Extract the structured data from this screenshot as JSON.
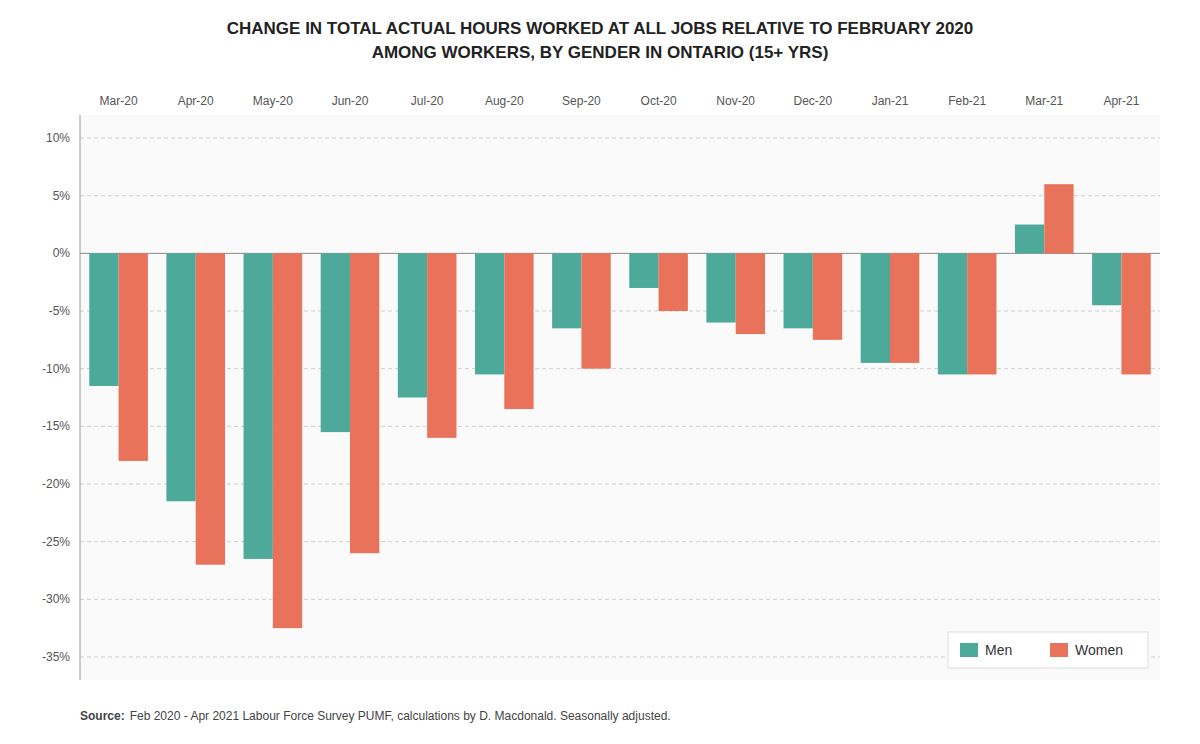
{
  "chart_data": {
    "type": "bar",
    "title": "CHANGE IN TOTAL ACTUAL HOURS WORKED AT ALL JOBS RELATIVE TO FEBRUARY 2020",
    "subtitle": "AMONG WORKERS, BY GENDER IN ONTARIO (15+ YRS)",
    "categories": [
      "Mar-20",
      "Apr-20",
      "May-20",
      "Jun-20",
      "Jul-20",
      "Aug-20",
      "Sep-20",
      "Oct-20",
      "Nov-20",
      "Dec-20",
      "Jan-21",
      "Feb-21",
      "Mar-21",
      "Apr-21"
    ],
    "series": [
      {
        "name": "Men",
        "color": "#4daa9a",
        "values": [
          -11.5,
          -21.5,
          -26.5,
          -15.5,
          -12.5,
          -10.5,
          -6.5,
          -3.0,
          -6.0,
          -6.5,
          -9.5,
          -10.5,
          2.5,
          -4.5
        ]
      },
      {
        "name": "Women",
        "color": "#e8735a",
        "values": [
          -18.0,
          -27.0,
          -32.5,
          -26.0,
          -16.0,
          -13.5,
          -10.0,
          -5.0,
          -7.0,
          -7.5,
          -9.5,
          -10.5,
          6.0,
          -10.5
        ]
      }
    ],
    "ylim": [
      -37,
      12
    ],
    "yticks": [
      {
        "value": 10,
        "label": "10%"
      },
      {
        "value": 5,
        "label": "5%"
      },
      {
        "value": 0,
        "label": "0%"
      },
      {
        "value": -5,
        "label": "-5%"
      },
      {
        "value": -10,
        "label": "-10%"
      },
      {
        "value": -15,
        "label": "-15%"
      },
      {
        "value": -20,
        "label": "-20%"
      },
      {
        "value": -25,
        "label": "-25%"
      },
      {
        "value": -30,
        "label": "-30%"
      },
      {
        "value": -35,
        "label": "-35%"
      }
    ],
    "grid": true,
    "legend": "lower right",
    "annotations": [
      "Source:",
      "Feb 2020 - Apr 2021 Labour Force Survey PUMF, calculations by D. Macdonald. Seasonally adjusted."
    ]
  }
}
